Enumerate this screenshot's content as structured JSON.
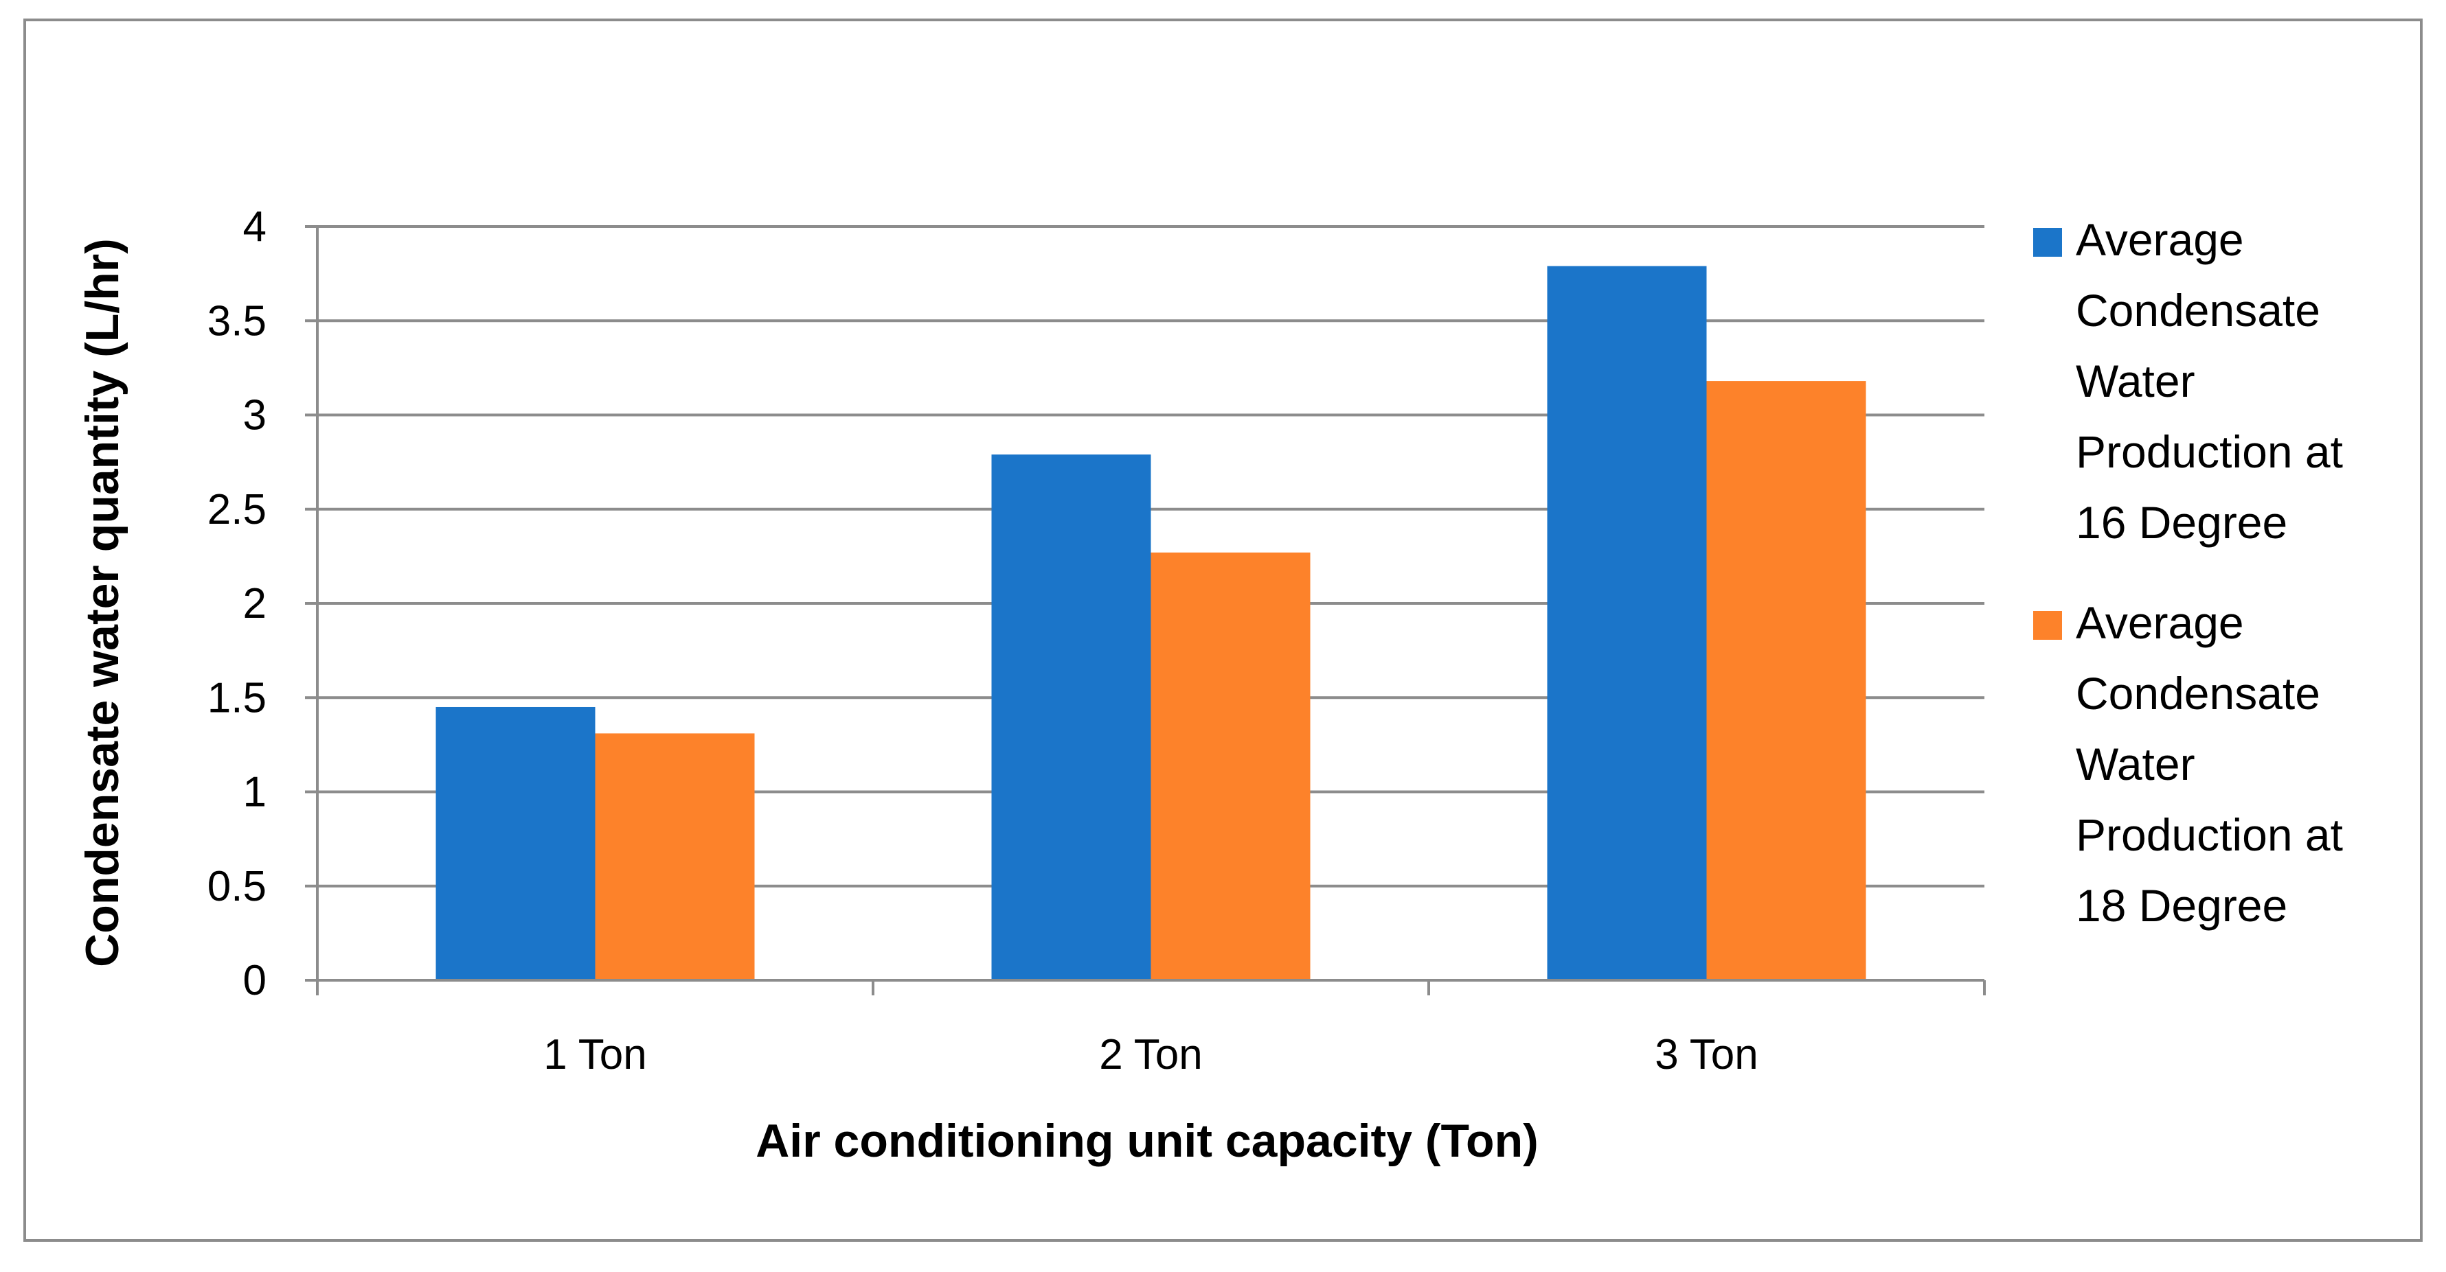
{
  "chart_data": {
    "type": "bar",
    "title": "",
    "categories": [
      "1 Ton",
      "2 Ton",
      "3 Ton"
    ],
    "series": [
      {
        "name": "Average Condensate Water Production at 16 Degree",
        "name_lines": [
          "Average",
          "Condensate",
          "Water",
          "Production at",
          "16 Degree"
        ],
        "color": "#1b75c9",
        "values": [
          1.45,
          2.79,
          3.79
        ]
      },
      {
        "name": "Average Condensate Water Production at 18 Degree",
        "name_lines": [
          "Average",
          "Condensate",
          "Water",
          "Production at",
          "18 Degree"
        ],
        "color": "#fd822a",
        "values": [
          1.31,
          2.27,
          3.18
        ]
      }
    ],
    "xlabel": "Air conditioning unit capacity (Ton)",
    "ylabel": "Condensate water quantity (L/hr)",
    "ylim": [
      0,
      4
    ],
    "yticks": [
      0,
      0.5,
      1,
      1.5,
      2,
      2.5,
      3,
      3.5,
      4
    ],
    "ytick_labels": [
      "0",
      "0.5",
      "1",
      "1.5",
      "2",
      "2.5",
      "3",
      "3.5",
      "4"
    ],
    "grid": true,
    "legend_position": "right",
    "colors": {
      "gridline": "#8c8c8c",
      "axis": "#8c8c8c",
      "frame": "#8c8c8c"
    }
  }
}
